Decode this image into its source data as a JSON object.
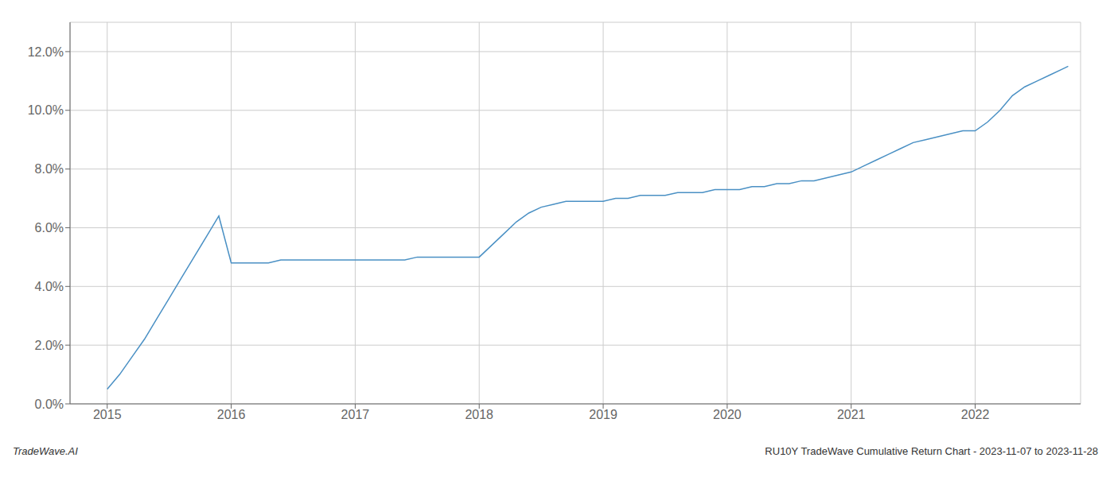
{
  "chart_data": {
    "type": "line",
    "annotations": [
      "TradeWave.AI",
      "RU10Y TradeWave Cumulative Return Chart - 2023-11-07 to 2023-11-28"
    ],
    "x": [
      2015.0,
      2015.1,
      2015.2,
      2015.3,
      2015.4,
      2015.5,
      2015.6,
      2015.7,
      2015.8,
      2015.9,
      2016.0,
      2016.1,
      2016.2,
      2016.3,
      2016.4,
      2016.5,
      2016.6,
      2016.7,
      2016.8,
      2016.9,
      2017.0,
      2017.1,
      2017.2,
      2017.3,
      2017.4,
      2017.5,
      2017.6,
      2017.7,
      2017.8,
      2017.9,
      2018.0,
      2018.1,
      2018.2,
      2018.3,
      2018.4,
      2018.5,
      2018.6,
      2018.7,
      2018.8,
      2018.9,
      2019.0,
      2019.1,
      2019.2,
      2019.3,
      2019.4,
      2019.5,
      2019.6,
      2019.7,
      2019.8,
      2019.9,
      2020.0,
      2020.1,
      2020.2,
      2020.3,
      2020.4,
      2020.5,
      2020.6,
      2020.7,
      2020.8,
      2020.9,
      2021.0,
      2021.1,
      2021.2,
      2021.3,
      2021.4,
      2021.5,
      2021.6,
      2021.7,
      2021.8,
      2021.9,
      2022.0,
      2022.1,
      2022.2,
      2022.3,
      2022.4,
      2022.5,
      2022.6,
      2022.7,
      2022.75
    ],
    "values": [
      0.005,
      0.01,
      0.016,
      0.022,
      0.029,
      0.036,
      0.043,
      0.05,
      0.057,
      0.064,
      0.048,
      0.048,
      0.048,
      0.048,
      0.049,
      0.049,
      0.049,
      0.049,
      0.049,
      0.049,
      0.049,
      0.049,
      0.049,
      0.049,
      0.049,
      0.05,
      0.05,
      0.05,
      0.05,
      0.05,
      0.05,
      0.054,
      0.058,
      0.062,
      0.065,
      0.067,
      0.068,
      0.069,
      0.069,
      0.069,
      0.069,
      0.07,
      0.07,
      0.071,
      0.071,
      0.071,
      0.072,
      0.072,
      0.072,
      0.073,
      0.073,
      0.073,
      0.074,
      0.074,
      0.075,
      0.075,
      0.076,
      0.076,
      0.077,
      0.078,
      0.079,
      0.081,
      0.083,
      0.085,
      0.087,
      0.089,
      0.09,
      0.091,
      0.092,
      0.093,
      0.093,
      0.096,
      0.1,
      0.105,
      0.108,
      0.11,
      0.112,
      0.114,
      0.115
    ],
    "color": "#4a90c4",
    "xlim": [
      2014.7,
      2022.85
    ],
    "xticks": [
      2015,
      2016,
      2017,
      2018,
      2019,
      2020,
      2021,
      2022
    ],
    "ylim": [
      0.0,
      0.13
    ],
    "yticks": [
      {
        "value": 0.0,
        "label": "0.0%"
      },
      {
        "value": 0.02,
        "label": "2.0%"
      },
      {
        "value": 0.04,
        "label": "4.0%"
      },
      {
        "value": 0.06,
        "label": "6.0%"
      },
      {
        "value": 0.08,
        "label": "8.0%"
      },
      {
        "value": 0.1,
        "label": "10.0%"
      },
      {
        "value": 0.12,
        "label": "12.0%"
      }
    ],
    "grid": true
  }
}
